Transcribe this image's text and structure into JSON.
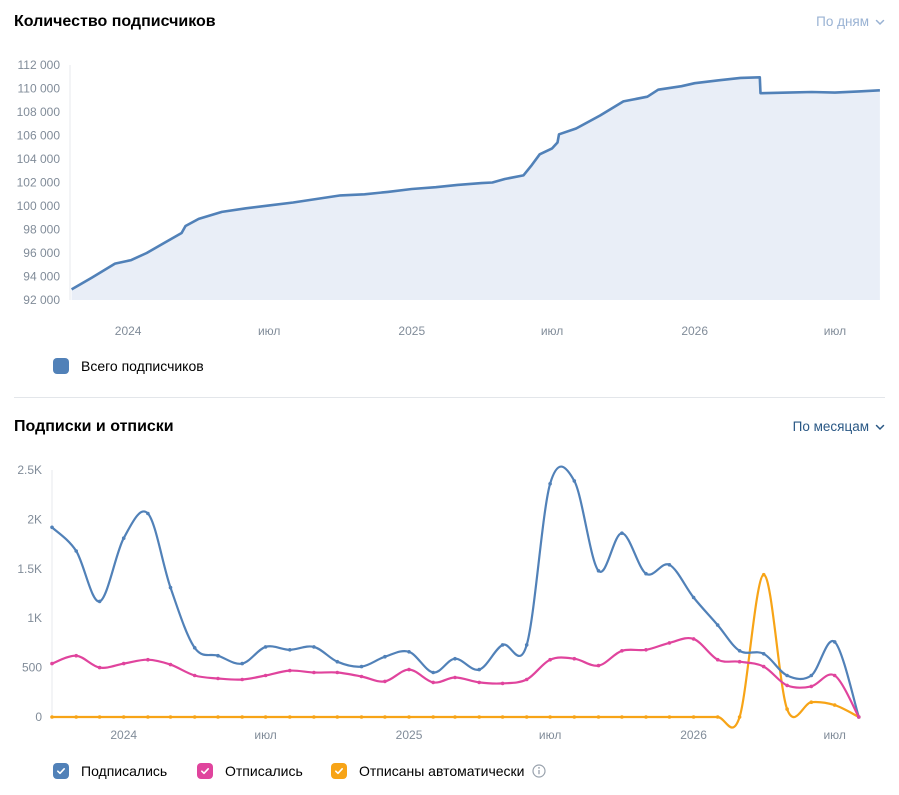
{
  "colors": {
    "blue": "#5181b8",
    "pink": "#e0449d",
    "orange": "#f7a417",
    "area_fill": "#e9eef7",
    "muted_link": "#99b2d3",
    "link": "#2a5885",
    "axis_text": "#818c99",
    "grid": "#e7e8ec"
  },
  "subscribers_section": {
    "title": "Количество подписчиков",
    "period_label": "По дням",
    "legend_label": "Всего подписчиков"
  },
  "subs_unsubs_section": {
    "title": "Подписки и отписки",
    "period_label": "По месяцам",
    "legend": [
      {
        "label": "Подписались",
        "color": "#5181b8"
      },
      {
        "label": "Отписались",
        "color": "#e0449d"
      },
      {
        "label": "Отписаны автоматически",
        "color": "#f7a417",
        "info_icon": "info-icon"
      }
    ]
  },
  "chart_data": [
    {
      "type": "area",
      "x_ticks": [
        "2024",
        "июл",
        "2025",
        "июл",
        "2026",
        "июл"
      ],
      "y_ticks": [
        "92 000",
        "94 000",
        "96 000",
        "98 000",
        "100 000",
        "102 000",
        "104 000",
        "106 000",
        "108 000",
        "110 000",
        "112 000"
      ],
      "ylim": [
        92000,
        112000
      ],
      "xlim": [
        "2023-10-18",
        "2026-09-01"
      ],
      "grid": "horizontal",
      "series": [
        {
          "name": "Всего подписчиков",
          "points": [
            [
              "2023-10-20",
              92900
            ],
            [
              "2023-11-15",
              93900
            ],
            [
              "2023-12-15",
              95100
            ],
            [
              "2024-01-05",
              95400
            ],
            [
              "2024-01-25",
              96000
            ],
            [
              "2024-02-15",
              96800
            ],
            [
              "2024-03-10",
              97700
            ],
            [
              "2024-03-15",
              98300
            ],
            [
              "2024-04-01",
              98900
            ],
            [
              "2024-05-01",
              99500
            ],
            [
              "2024-06-01",
              99800
            ],
            [
              "2024-07-01",
              100050
            ],
            [
              "2024-08-01",
              100300
            ],
            [
              "2024-09-01",
              100600
            ],
            [
              "2024-10-01",
              100900
            ],
            [
              "2024-11-01",
              101000
            ],
            [
              "2024-12-01",
              101200
            ],
            [
              "2025-01-01",
              101450
            ],
            [
              "2025-02-01",
              101600
            ],
            [
              "2025-03-01",
              101800
            ],
            [
              "2025-04-01",
              101950
            ],
            [
              "2025-04-15",
              102000
            ],
            [
              "2025-05-01",
              102300
            ],
            [
              "2025-05-25",
              102600
            ],
            [
              "2025-06-05",
              103500
            ],
            [
              "2025-06-15",
              104400
            ],
            [
              "2025-07-01",
              104900
            ],
            [
              "2025-07-08",
              105400
            ],
            [
              "2025-07-10",
              106100
            ],
            [
              "2025-08-01",
              106600
            ],
            [
              "2025-09-01",
              107700
            ],
            [
              "2025-10-01",
              108900
            ],
            [
              "2025-11-01",
              109300
            ],
            [
              "2025-11-15",
              109900
            ],
            [
              "2025-12-15",
              110200
            ],
            [
              "2026-01-01",
              110450
            ],
            [
              "2026-02-01",
              110700
            ],
            [
              "2026-03-01",
              110900
            ],
            [
              "2026-03-26",
              110950
            ],
            [
              "2026-03-27",
              109600
            ],
            [
              "2026-05-01",
              109650
            ],
            [
              "2026-06-01",
              109700
            ],
            [
              "2026-07-01",
              109650
            ],
            [
              "2026-08-01",
              109750
            ],
            [
              "2026-08-28",
              109850
            ]
          ]
        }
      ]
    },
    {
      "type": "line",
      "x_ticks": [
        "2024",
        "июл",
        "2025",
        "июл",
        "2026",
        "июл"
      ],
      "y_ticks": [
        "0",
        "500",
        "1K",
        "1.5K",
        "2K",
        "2.5K"
      ],
      "ylim": [
        0,
        2500
      ],
      "xlim": [
        "2023-10-01",
        "2026-09-01"
      ],
      "grid": "horizontal",
      "categories": [
        "2023-10",
        "2023-11",
        "2023-12",
        "2024-01",
        "2024-02",
        "2024-03",
        "2024-04",
        "2024-05",
        "2024-06",
        "2024-07",
        "2024-08",
        "2024-09",
        "2024-10",
        "2024-11",
        "2024-12",
        "2025-01",
        "2025-02",
        "2025-03",
        "2025-04",
        "2025-05",
        "2025-06",
        "2025-07",
        "2025-08",
        "2025-09",
        "2025-10",
        "2025-11",
        "2025-12",
        "2026-01",
        "2026-02",
        "2026-03",
        "2026-04",
        "2026-05",
        "2026-06",
        "2026-07",
        "2026-08",
        "2026-09"
      ],
      "series": [
        {
          "name": "Подписались",
          "values": [
            1920,
            1680,
            1170,
            1810,
            2060,
            1310,
            700,
            620,
            540,
            710,
            680,
            710,
            560,
            510,
            610,
            660,
            450,
            590,
            480,
            730,
            730,
            2360,
            2390,
            1480,
            1860,
            1450,
            1540,
            1210,
            930,
            670,
            640,
            420,
            420,
            760,
            0,
            0
          ]
        },
        {
          "name": "Отписались",
          "values": [
            540,
            620,
            500,
            540,
            580,
            530,
            420,
            390,
            380,
            420,
            470,
            450,
            450,
            410,
            360,
            480,
            350,
            400,
            350,
            340,
            380,
            580,
            590,
            520,
            670,
            680,
            750,
            790,
            580,
            560,
            510,
            320,
            310,
            420,
            0,
            0
          ]
        },
        {
          "name": "Отписаны автоматически",
          "values": [
            0,
            0,
            0,
            0,
            0,
            0,
            0,
            0,
            0,
            0,
            0,
            0,
            0,
            0,
            0,
            0,
            0,
            0,
            0,
            0,
            0,
            0,
            0,
            0,
            0,
            0,
            0,
            0,
            0,
            0,
            1440,
            80,
            150,
            120,
            0,
            0
          ]
        }
      ]
    }
  ]
}
